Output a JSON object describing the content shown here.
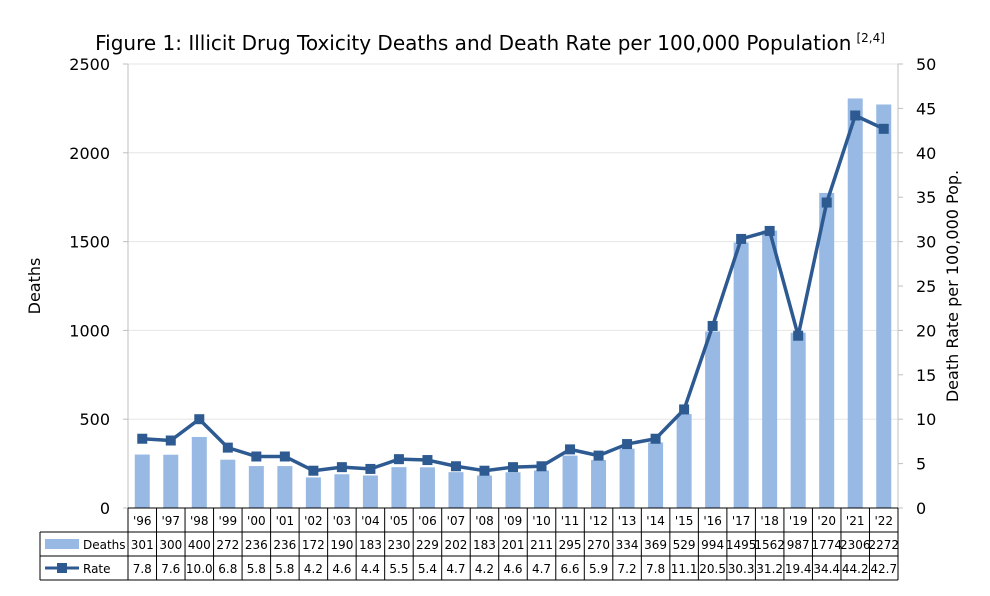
{
  "chart_data": {
    "type": "bar+line",
    "title": "Figure 1: Illicit Drug Toxicity Deaths and Death Rate per 100,000 Population",
    "title_superscript": "[2,4]",
    "categories": [
      "'96",
      "'97",
      "'98",
      "'99",
      "'00",
      "'01",
      "'02",
      "'03",
      "'04",
      "'05",
      "'06",
      "'07",
      "'08",
      "'09",
      "'10",
      "'11",
      "'12",
      "'13",
      "'14",
      "'15",
      "'16",
      "'17",
      "'18",
      "'19",
      "'20",
      "'21",
      "'22"
    ],
    "series": [
      {
        "name": "Deaths",
        "type": "bar",
        "axis": "left",
        "color": "#97B9E3",
        "values": [
          301,
          300,
          400,
          272,
          236,
          236,
          172,
          190,
          183,
          230,
          229,
          202,
          183,
          201,
          211,
          295,
          270,
          334,
          369,
          529,
          994,
          1495,
          1562,
          987,
          1774,
          2306,
          2272
        ]
      },
      {
        "name": "Rate",
        "type": "line",
        "axis": "right",
        "color": "#2E5A92",
        "marker": "square",
        "values": [
          7.8,
          7.6,
          10.0,
          6.8,
          5.8,
          5.8,
          4.2,
          4.6,
          4.4,
          5.5,
          5.4,
          4.7,
          4.2,
          4.6,
          4.7,
          6.6,
          5.9,
          7.2,
          7.8,
          11.1,
          20.5,
          30.3,
          31.2,
          19.4,
          34.4,
          44.2,
          42.7
        ],
        "labels": [
          "7.8",
          "7.6",
          "10.0",
          "6.8",
          "5.8",
          "5.8",
          "4.2",
          "4.6",
          "4.4",
          "5.5",
          "5.4",
          "4.7",
          "4.2",
          "4.6",
          "4.7",
          "6.6",
          "5.9",
          "7.2",
          "7.8",
          "11.1",
          "20.5",
          "30.3",
          "31.2",
          "19.4",
          "34.4",
          "44.2",
          "42.7"
        ]
      }
    ],
    "y_left": {
      "label": "Deaths",
      "ylim": [
        0,
        2500
      ],
      "ticks": [
        "0",
        "500",
        "1000",
        "1500",
        "2000",
        "2500"
      ]
    },
    "y_right": {
      "label": "Death Rate per 100,000 Pop.",
      "ylim": [
        0,
        50
      ],
      "ticks": [
        "0",
        "5",
        "10",
        "15",
        "20",
        "25",
        "30",
        "35",
        "40",
        "45",
        "50"
      ]
    },
    "grid": true,
    "data_table": true,
    "legend": "data-table-left"
  }
}
